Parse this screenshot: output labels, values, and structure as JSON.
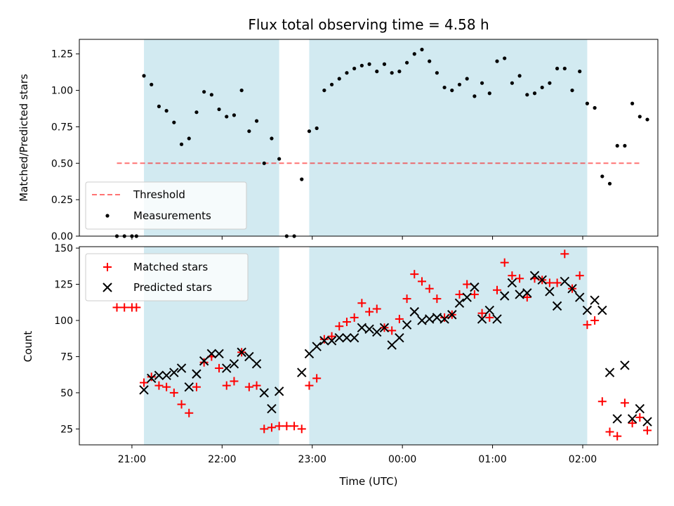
{
  "colors": {
    "band": "#add8e6",
    "threshold": "#ff0000",
    "measurement": "#000000",
    "matched": "#ff0000",
    "predicted": "#000000"
  },
  "chart_data": [
    {
      "type": "scatter",
      "title": "Flux total observing time = 4.58 h",
      "xlabel": "",
      "ylabel": "Matched/Predicted stars",
      "ylim": [
        0,
        1.35
      ],
      "xlim": [
        "20:25",
        "02:50"
      ],
      "yticks": [
        "0.00",
        "0.25",
        "0.50",
        "0.75",
        "1.00",
        "1.25"
      ],
      "legend_position": "lower-left",
      "shaded_intervals": [
        {
          "start": "21:08",
          "end": "22:38"
        },
        {
          "start": "22:58",
          "end": "02:03"
        }
      ],
      "threshold": {
        "name": "Threshold",
        "value": 0.5,
        "x_start": "20:50",
        "x_end": "02:38",
        "style": "dashed"
      },
      "series": [
        {
          "name": "Measurements",
          "points": [
            [
              "20:50",
              0.0
            ],
            [
              "20:55",
              0.0
            ],
            [
              "21:00",
              0.0
            ],
            [
              "21:03",
              0.0
            ],
            [
              "21:08",
              1.1
            ],
            [
              "21:13",
              1.04
            ],
            [
              "21:18",
              0.89
            ],
            [
              "21:23",
              0.86
            ],
            [
              "21:28",
              0.78
            ],
            [
              "21:33",
              0.63
            ],
            [
              "21:38",
              0.67
            ],
            [
              "21:43",
              0.85
            ],
            [
              "21:48",
              0.99
            ],
            [
              "21:53",
              0.97
            ],
            [
              "21:58",
              0.87
            ],
            [
              "22:03",
              0.82
            ],
            [
              "22:08",
              0.83
            ],
            [
              "22:13",
              1.0
            ],
            [
              "22:18",
              0.72
            ],
            [
              "22:23",
              0.79
            ],
            [
              "22:28",
              0.5
            ],
            [
              "22:33",
              0.67
            ],
            [
              "22:38",
              0.53
            ],
            [
              "22:43",
              0.0
            ],
            [
              "22:48",
              0.0
            ],
            [
              "22:53",
              0.39
            ],
            [
              "22:58",
              0.72
            ],
            [
              "23:03",
              0.74
            ],
            [
              "23:08",
              1.0
            ],
            [
              "23:13",
              1.04
            ],
            [
              "23:18",
              1.08
            ],
            [
              "23:23",
              1.12
            ],
            [
              "23:28",
              1.15
            ],
            [
              "23:33",
              1.17
            ],
            [
              "23:38",
              1.18
            ],
            [
              "23:43",
              1.13
            ],
            [
              "23:48",
              1.18
            ],
            [
              "23:53",
              1.12
            ],
            [
              "23:58",
              1.13
            ],
            [
              "00:03",
              1.19
            ],
            [
              "00:08",
              1.25
            ],
            [
              "00:13",
              1.28
            ],
            [
              "00:18",
              1.2
            ],
            [
              "00:23",
              1.12
            ],
            [
              "00:28",
              1.02
            ],
            [
              "00:33",
              1.0
            ],
            [
              "00:38",
              1.04
            ],
            [
              "00:43",
              1.08
            ],
            [
              "00:48",
              0.96
            ],
            [
              "00:53",
              1.05
            ],
            [
              "00:58",
              0.98
            ],
            [
              "01:03",
              1.2
            ],
            [
              "01:08",
              1.22
            ],
            [
              "01:13",
              1.05
            ],
            [
              "01:18",
              1.1
            ],
            [
              "01:23",
              0.97
            ],
            [
              "01:28",
              0.98
            ],
            [
              "01:33",
              1.02
            ],
            [
              "01:38",
              1.05
            ],
            [
              "01:43",
              1.15
            ],
            [
              "01:48",
              1.15
            ],
            [
              "01:53",
              1.0
            ],
            [
              "01:58",
              1.13
            ],
            [
              "02:03",
              0.91
            ],
            [
              "02:08",
              0.88
            ],
            [
              "02:13",
              0.41
            ],
            [
              "02:18",
              0.36
            ],
            [
              "02:23",
              0.62
            ],
            [
              "02:28",
              0.62
            ],
            [
              "02:33",
              0.91
            ],
            [
              "02:38",
              0.82
            ],
            [
              "02:43",
              0.8
            ]
          ]
        }
      ]
    },
    {
      "type": "scatter",
      "title": "",
      "xlabel": "Time (UTC)",
      "ylabel": "Count",
      "ylim": [
        14,
        151
      ],
      "xlim": [
        "20:25",
        "02:50"
      ],
      "yticks": [
        "25",
        "50",
        "75",
        "100",
        "125",
        "150"
      ],
      "xticks": [
        "21:00",
        "22:00",
        "23:00",
        "00:00",
        "01:00",
        "02:00"
      ],
      "legend_position": "upper-left",
      "shaded_intervals": [
        {
          "start": "21:08",
          "end": "22:38"
        },
        {
          "start": "22:58",
          "end": "02:03"
        }
      ],
      "series": [
        {
          "name": "Matched stars",
          "points": [
            [
              "20:50",
              109
            ],
            [
              "20:55",
              109
            ],
            [
              "21:00",
              109
            ],
            [
              "21:03",
              109
            ],
            [
              "21:08",
              57
            ],
            [
              "21:13",
              61
            ],
            [
              "21:18",
              55
            ],
            [
              "21:23",
              54
            ],
            [
              "21:28",
              50
            ],
            [
              "21:33",
              42
            ],
            [
              "21:38",
              36
            ],
            [
              "21:43",
              54
            ],
            [
              "21:48",
              71
            ],
            [
              "21:53",
              75
            ],
            [
              "21:58",
              67
            ],
            [
              "22:03",
              55
            ],
            [
              "22:08",
              58
            ],
            [
              "22:13",
              78
            ],
            [
              "22:18",
              54
            ],
            [
              "22:23",
              55
            ],
            [
              "22:28",
              25
            ],
            [
              "22:33",
              26
            ],
            [
              "22:38",
              27
            ],
            [
              "22:43",
              27
            ],
            [
              "22:48",
              27
            ],
            [
              "22:53",
              25
            ],
            [
              "22:58",
              55
            ],
            [
              "23:03",
              60
            ],
            [
              "23:08",
              87
            ],
            [
              "23:13",
              89
            ],
            [
              "23:18",
              96
            ],
            [
              "23:23",
              99
            ],
            [
              "23:28",
              102
            ],
            [
              "23:33",
              112
            ],
            [
              "23:38",
              106
            ],
            [
              "23:43",
              108
            ],
            [
              "23:48",
              95
            ],
            [
              "23:53",
              93
            ],
            [
              "23:58",
              101
            ],
            [
              "00:03",
              115
            ],
            [
              "00:08",
              132
            ],
            [
              "00:13",
              127
            ],
            [
              "00:18",
              122
            ],
            [
              "00:23",
              115
            ],
            [
              "00:28",
              102
            ],
            [
              "00:33",
              104
            ],
            [
              "00:38",
              118
            ],
            [
              "00:43",
              125
            ],
            [
              "00:48",
              118
            ],
            [
              "00:53",
              105
            ],
            [
              "00:58",
              102
            ],
            [
              "01:03",
              121
            ],
            [
              "01:08",
              140
            ],
            [
              "01:13",
              131
            ],
            [
              "01:18",
              129
            ],
            [
              "01:23",
              116
            ],
            [
              "01:28",
              129
            ],
            [
              "01:33",
              128
            ],
            [
              "01:38",
              126
            ],
            [
              "01:43",
              126
            ],
            [
              "01:48",
              146
            ],
            [
              "01:53",
              122
            ],
            [
              "01:58",
              131
            ],
            [
              "02:03",
              97
            ],
            [
              "02:08",
              100
            ],
            [
              "02:13",
              44
            ],
            [
              "02:18",
              23
            ],
            [
              "02:23",
              20
            ],
            [
              "02:28",
              43
            ],
            [
              "02:33",
              29
            ],
            [
              "02:38",
              33
            ],
            [
              "02:43",
              24
            ]
          ]
        },
        {
          "name": "Predicted stars",
          "points": [
            [
              "21:08",
              52
            ],
            [
              "21:13",
              60
            ],
            [
              "21:18",
              62
            ],
            [
              "21:23",
              62
            ],
            [
              "21:28",
              64
            ],
            [
              "21:33",
              67
            ],
            [
              "21:38",
              54
            ],
            [
              "21:43",
              63
            ],
            [
              "21:48",
              72
            ],
            [
              "21:53",
              77
            ],
            [
              "21:58",
              77
            ],
            [
              "22:03",
              67
            ],
            [
              "22:08",
              70
            ],
            [
              "22:13",
              78
            ],
            [
              "22:18",
              75
            ],
            [
              "22:23",
              70
            ],
            [
              "22:28",
              50
            ],
            [
              "22:33",
              39
            ],
            [
              "22:38",
              51
            ],
            [
              "22:53",
              64
            ],
            [
              "22:58",
              77
            ],
            [
              "23:03",
              82
            ],
            [
              "23:08",
              86
            ],
            [
              "23:13",
              86
            ],
            [
              "23:18",
              88
            ],
            [
              "23:23",
              88
            ],
            [
              "23:28",
              88
            ],
            [
              "23:33",
              95
            ],
            [
              "23:38",
              94
            ],
            [
              "23:43",
              92
            ],
            [
              "23:48",
              95
            ],
            [
              "23:53",
              83
            ],
            [
              "23:58",
              88
            ],
            [
              "00:03",
              97
            ],
            [
              "00:08",
              106
            ],
            [
              "00:13",
              100
            ],
            [
              "00:18",
              101
            ],
            [
              "00:23",
              102
            ],
            [
              "00:28",
              101
            ],
            [
              "00:33",
              104
            ],
            [
              "00:38",
              112
            ],
            [
              "00:43",
              116
            ],
            [
              "00:48",
              123
            ],
            [
              "00:53",
              101
            ],
            [
              "00:58",
              107
            ],
            [
              "01:03",
              101
            ],
            [
              "01:08",
              117
            ],
            [
              "01:13",
              126
            ],
            [
              "01:18",
              118
            ],
            [
              "01:23",
              119
            ],
            [
              "01:28",
              131
            ],
            [
              "01:33",
              128
            ],
            [
              "01:38",
              120
            ],
            [
              "01:43",
              110
            ],
            [
              "01:48",
              127
            ],
            [
              "01:53",
              122
            ],
            [
              "01:58",
              116
            ],
            [
              "02:03",
              107
            ],
            [
              "02:08",
              114
            ],
            [
              "02:13",
              107
            ],
            [
              "02:18",
              64
            ],
            [
              "02:23",
              32
            ],
            [
              "02:28",
              69
            ],
            [
              "02:33",
              32
            ],
            [
              "02:38",
              39
            ],
            [
              "02:43",
              30
            ]
          ]
        }
      ]
    }
  ]
}
